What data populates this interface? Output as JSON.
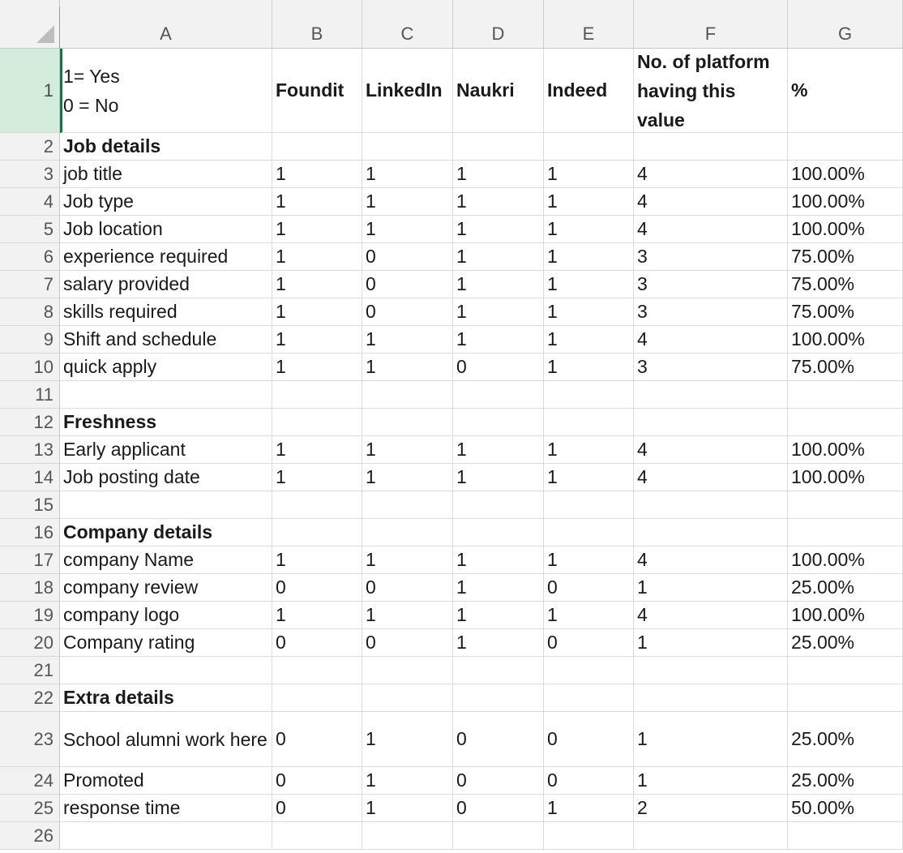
{
  "columns": [
    "A",
    "B",
    "C",
    "D",
    "E",
    "F",
    "G"
  ],
  "rows": [
    {
      "num": "1",
      "cells": [
        "1= Yes\n0 = No",
        "Foundit",
        "LinkedIn",
        "Naukri",
        "Indeed",
        "No. of platform having this value",
        "%"
      ]
    },
    {
      "num": "2",
      "cells": [
        "Job details",
        "",
        "",
        "",
        "",
        "",
        ""
      ]
    },
    {
      "num": "3",
      "cells": [
        "job title",
        "1",
        "1",
        "1",
        "1",
        "4",
        "100.00%"
      ]
    },
    {
      "num": "4",
      "cells": [
        "Job type",
        "1",
        "1",
        "1",
        "1",
        "4",
        "100.00%"
      ]
    },
    {
      "num": "5",
      "cells": [
        "Job location",
        "1",
        "1",
        "1",
        "1",
        "4",
        "100.00%"
      ]
    },
    {
      "num": "6",
      "cells": [
        "experience required",
        "1",
        "0",
        "1",
        "1",
        "3",
        "75.00%"
      ]
    },
    {
      "num": "7",
      "cells": [
        "salary provided",
        "1",
        "0",
        "1",
        "1",
        "3",
        "75.00%"
      ]
    },
    {
      "num": "8",
      "cells": [
        "skills required",
        "1",
        "0",
        "1",
        "1",
        "3",
        "75.00%"
      ]
    },
    {
      "num": "9",
      "cells": [
        "Shift and schedule",
        "1",
        "1",
        "1",
        "1",
        "4",
        "100.00%"
      ]
    },
    {
      "num": "10",
      "cells": [
        "quick apply",
        "1",
        "1",
        "0",
        "1",
        "3",
        "75.00%"
      ]
    },
    {
      "num": "11",
      "cells": [
        "",
        "",
        "",
        "",
        "",
        "",
        ""
      ]
    },
    {
      "num": "12",
      "cells": [
        "Freshness",
        "",
        "",
        "",
        "",
        "",
        ""
      ]
    },
    {
      "num": "13",
      "cells": [
        "Early applicant",
        "1",
        "1",
        "1",
        "1",
        "4",
        "100.00%"
      ]
    },
    {
      "num": "14",
      "cells": [
        "Job posting date",
        "1",
        "1",
        "1",
        "1",
        "4",
        "100.00%"
      ]
    },
    {
      "num": "15",
      "cells": [
        "",
        "",
        "",
        "",
        "",
        "",
        ""
      ]
    },
    {
      "num": "16",
      "cells": [
        "Company details",
        "",
        "",
        "",
        "",
        "",
        ""
      ]
    },
    {
      "num": "17",
      "cells": [
        "company Name",
        "1",
        "1",
        "1",
        "1",
        "4",
        "100.00%"
      ]
    },
    {
      "num": "18",
      "cells": [
        "company review",
        "0",
        "0",
        "1",
        "0",
        "1",
        "25.00%"
      ]
    },
    {
      "num": "19",
      "cells": [
        "company logo",
        "1",
        "1",
        "1",
        "1",
        "4",
        "100.00%"
      ]
    },
    {
      "num": "20",
      "cells": [
        "Company rating",
        "0",
        "0",
        "1",
        "0",
        "1",
        "25.00%"
      ]
    },
    {
      "num": "21",
      "cells": [
        "",
        "",
        "",
        "",
        "",
        "",
        ""
      ]
    },
    {
      "num": "22",
      "cells": [
        "Extra details",
        "",
        "",
        "",
        "",
        "",
        ""
      ]
    },
    {
      "num": "23",
      "cells": [
        "School alumni work here",
        "0",
        "1",
        "0",
        "0",
        "1",
        "25.00%"
      ]
    },
    {
      "num": "24",
      "cells": [
        "Promoted",
        "0",
        "1",
        "0",
        "0",
        "1",
        "25.00%"
      ]
    },
    {
      "num": "25",
      "cells": [
        "response time",
        "0",
        "1",
        "0",
        "1",
        "2",
        "50.00%"
      ]
    },
    {
      "num": "26",
      "cells": [
        "",
        "",
        "",
        "",
        "",
        "",
        ""
      ]
    }
  ],
  "selected_row": "1",
  "colors": {
    "header_bg": "#f2f2f2",
    "selected_row_bg": "#d3ecdc",
    "selection_border": "#1e7145"
  }
}
